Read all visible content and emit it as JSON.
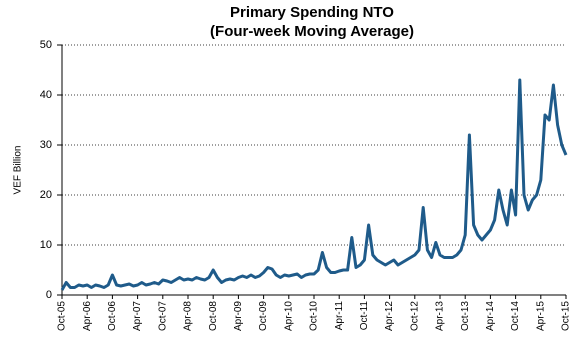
{
  "chart_data": {
    "type": "line",
    "title": "Primary Spending NTO",
    "subtitle": "(Four-week Moving Average)",
    "y_label": "VEF Billion",
    "categories": [
      "Oct-05",
      null,
      null,
      null,
      null,
      null,
      "Apr-06",
      null,
      null,
      null,
      null,
      null,
      "Oct-06",
      null,
      null,
      null,
      null,
      null,
      "Apr-07",
      null,
      null,
      null,
      null,
      null,
      "Oct-07",
      null,
      null,
      null,
      null,
      null,
      "Apr-08",
      null,
      null,
      null,
      null,
      null,
      "Oct-08",
      null,
      null,
      null,
      null,
      null,
      "Apr-09",
      null,
      null,
      null,
      null,
      null,
      "Oct-09",
      null,
      null,
      null,
      null,
      null,
      "Apr-10",
      null,
      null,
      null,
      null,
      null,
      "Oct-10",
      null,
      null,
      null,
      null,
      null,
      "Apr-11",
      null,
      null,
      null,
      null,
      null,
      "Oct-11",
      null,
      null,
      null,
      null,
      null,
      "Apr-12",
      null,
      null,
      null,
      null,
      null,
      "Oct-12",
      null,
      null,
      null,
      null,
      null,
      "Apr-13",
      null,
      null,
      null,
      null,
      null,
      "Oct-13",
      null,
      null,
      null,
      null,
      null,
      "Apr-14",
      null,
      null,
      null,
      null,
      null,
      "Oct-14",
      null,
      null,
      null,
      null,
      null,
      "Apr-15",
      null,
      null,
      null,
      null,
      null,
      "Oct-15"
    ],
    "values": [
      1,
      2.5,
      1.5,
      1.5,
      2,
      1.8,
      2,
      1.5,
      2,
      1.8,
      1.5,
      2,
      4,
      2,
      1.8,
      2,
      2.2,
      1.8,
      2,
      2.5,
      2,
      2.2,
      2.5,
      2.2,
      3,
      2.8,
      2.5,
      3,
      3.5,
      3,
      3.2,
      3,
      3.5,
      3.2,
      3,
      3.5,
      5,
      3.5,
      2.5,
      3,
      3.2,
      3,
      3.5,
      3.8,
      3.5,
      4,
      3.5,
      3.8,
      4.5,
      5.5,
      5.2,
      4,
      3.5,
      4,
      3.8,
      4,
      4.2,
      3.5,
      4,
      4.2,
      4.2,
      5,
      8.5,
      5.5,
      4.5,
      4.5,
      4.8,
      5,
      5,
      11.5,
      5.5,
      6,
      7,
      14,
      8,
      7,
      6.5,
      6,
      6.5,
      7,
      6,
      6.5,
      7,
      7.5,
      8,
      9,
      17.5,
      9,
      7.5,
      10.5,
      8,
      7.5,
      7.5,
      7.5,
      8,
      9,
      12,
      32,
      14,
      12,
      11,
      12,
      13,
      15,
      21,
      17,
      14,
      21,
      16,
      43,
      20,
      17,
      19,
      20,
      23,
      36,
      35,
      42,
      34,
      30,
      28
    ],
    "color": "#1f5b8a",
    "ylim": [
      0,
      50
    ],
    "yticks": [
      0,
      10,
      20,
      30,
      40,
      50
    ],
    "grid": true
  }
}
